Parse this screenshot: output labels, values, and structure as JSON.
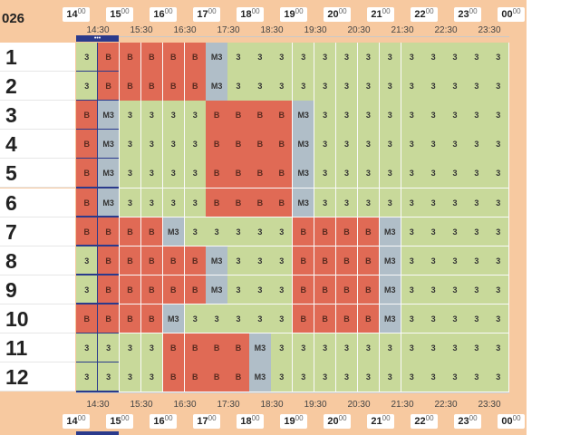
{
  "corner_label": "026",
  "hours": [
    {
      "h": "14",
      "m": "00"
    },
    {
      "h": "15",
      "m": "00"
    },
    {
      "h": "16",
      "m": "00"
    },
    {
      "h": "17",
      "m": "00"
    },
    {
      "h": "18",
      "m": "00"
    },
    {
      "h": "19",
      "m": "00"
    },
    {
      "h": "20",
      "m": "00"
    },
    {
      "h": "21",
      "m": "00"
    },
    {
      "h": "22",
      "m": "00"
    },
    {
      "h": "23",
      "m": "00"
    },
    {
      "h": "00",
      "m": "00"
    }
  ],
  "half_hours": [
    "14:30",
    "15:30",
    "16:30",
    "17:30",
    "18:30",
    "19:30",
    "20:30",
    "21:30",
    "22:30",
    "23:30"
  ],
  "current_marker": "•••",
  "rows": [
    {
      "label": "1",
      "cells": [
        "3",
        "B",
        "B",
        "B",
        "B",
        "B",
        "M3",
        "3",
        "3",
        "3",
        "3",
        "3",
        "3",
        "3",
        "3",
        "3",
        "3",
        "3",
        "3",
        "3"
      ]
    },
    {
      "label": "2",
      "cells": [
        "3",
        "B",
        "B",
        "B",
        "B",
        "B",
        "M3",
        "3",
        "3",
        "3",
        "3",
        "3",
        "3",
        "3",
        "3",
        "3",
        "3",
        "3",
        "3",
        "3"
      ]
    },
    {
      "label": "3",
      "cells": [
        "B",
        "M3",
        "3",
        "3",
        "3",
        "3",
        "B",
        "B",
        "B",
        "B",
        "M3",
        "3",
        "3",
        "3",
        "3",
        "3",
        "3",
        "3",
        "3",
        "3"
      ]
    },
    {
      "label": "4",
      "cells": [
        "B",
        "M3",
        "3",
        "3",
        "3",
        "3",
        "B",
        "B",
        "B",
        "B",
        "M3",
        "3",
        "3",
        "3",
        "3",
        "3",
        "3",
        "3",
        "3",
        "3"
      ]
    },
    {
      "label": "5",
      "cells": [
        "B",
        "M3",
        "3",
        "3",
        "3",
        "3",
        "B",
        "B",
        "B",
        "B",
        "M3",
        "3",
        "3",
        "3",
        "3",
        "3",
        "3",
        "3",
        "3",
        "3"
      ]
    },
    {
      "label": "6",
      "cells": [
        "B",
        "M3",
        "3",
        "3",
        "3",
        "3",
        "B",
        "B",
        "B",
        "B",
        "M3",
        "3",
        "3",
        "3",
        "3",
        "3",
        "3",
        "3",
        "3",
        "3"
      ]
    },
    {
      "label": "7",
      "cells": [
        "B",
        "B",
        "B",
        "B",
        "M3",
        "3",
        "3",
        "3",
        "3",
        "3",
        "B",
        "B",
        "B",
        "B",
        "M3",
        "3",
        "3",
        "3",
        "3",
        "3"
      ]
    },
    {
      "label": "8",
      "cells": [
        "3",
        "B",
        "B",
        "B",
        "B",
        "B",
        "M3",
        "3",
        "3",
        "3",
        "B",
        "B",
        "B",
        "B",
        "M3",
        "3",
        "3",
        "3",
        "3",
        "3"
      ]
    },
    {
      "label": "9",
      "cells": [
        "3",
        "B",
        "B",
        "B",
        "B",
        "B",
        "M3",
        "3",
        "3",
        "3",
        "B",
        "B",
        "B",
        "B",
        "M3",
        "3",
        "3",
        "3",
        "3",
        "3"
      ]
    },
    {
      "label": "10",
      "cells": [
        "B",
        "B",
        "B",
        "B",
        "M3",
        "3",
        "3",
        "3",
        "3",
        "3",
        "B",
        "B",
        "B",
        "B",
        "M3",
        "3",
        "3",
        "3",
        "3",
        "3"
      ]
    },
    {
      "label": "11",
      "cells": [
        "3",
        "3",
        "3",
        "3",
        "B",
        "B",
        "B",
        "B",
        "M3",
        "3",
        "3",
        "3",
        "3",
        "3",
        "3",
        "3",
        "3",
        "3",
        "3",
        "3"
      ]
    },
    {
      "label": "12",
      "cells": [
        "3",
        "3",
        "3",
        "3",
        "B",
        "B",
        "B",
        "B",
        "M3",
        "3",
        "3",
        "3",
        "3",
        "3",
        "3",
        "3",
        "3",
        "3",
        "3",
        "3"
      ]
    }
  ],
  "colors": {
    "available": "#c8d99a",
    "booked": "#e06a55",
    "maintenance": "#b0bec8",
    "header": "#f7c9a0",
    "marker": "#2a3a8c"
  }
}
